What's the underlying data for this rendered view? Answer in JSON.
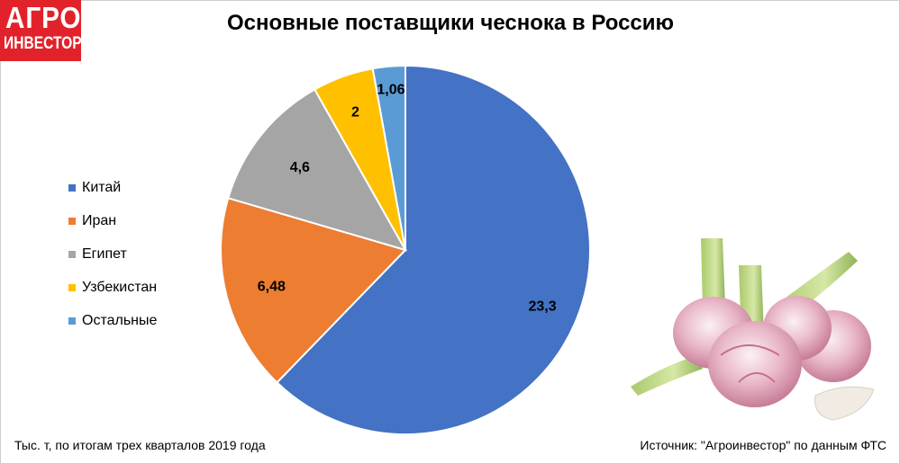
{
  "logo": {
    "line1": "АГРО",
    "line2": "ИНВЕСТОР"
  },
  "footnote": "Тыс. т, по итогам трех кварталов 2019 года",
  "source": "Источник: \"Агроинвестор\" по данным ФТС",
  "chart_data": {
    "type": "pie",
    "title": "Основные поставщики чеснока в Россию",
    "categories": [
      "Китай",
      "Иран",
      "Египет",
      "Узбекистан",
      "Остальные"
    ],
    "values": [
      23.3,
      6.48,
      4.6,
      2,
      1.06
    ],
    "data_labels": [
      "23,3",
      "6,48",
      "4,6",
      "2",
      "1,06"
    ],
    "colors": [
      "#4472c4",
      "#ed7d31",
      "#a5a5a5",
      "#ffc000",
      "#5b9bd5"
    ],
    "legend_position": "left"
  }
}
